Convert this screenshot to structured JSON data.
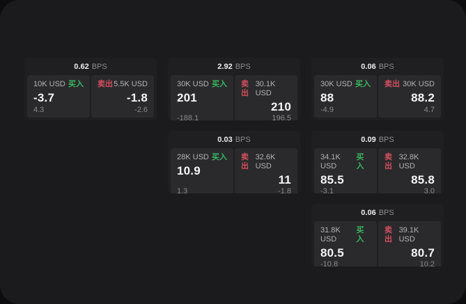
{
  "colors": {
    "page_bg": "#0d0d0e",
    "container_bg": "#1b1b1d",
    "card_bg": "#1f1f21",
    "cell_bg": "#2a2a2c",
    "buy_green": "#3cb460",
    "sell_red": "#d24f5f"
  },
  "labels": {
    "bps": "BPS",
    "buy": "买入",
    "sell": "卖出"
  },
  "cards": [
    {
      "bps": "0.62",
      "buy": {
        "amount": "10K USD",
        "price": "-3.7",
        "delta": "4.3"
      },
      "sell": {
        "amount": "5.5K USD",
        "price": "-1.8",
        "delta": "-2.6"
      }
    },
    {
      "bps": "2.92",
      "buy": {
        "amount": "30K USD",
        "price": "201",
        "delta": "-188.1"
      },
      "sell": {
        "amount": "30.1K USD",
        "price": "210",
        "delta": "196.5"
      }
    },
    {
      "bps": "0.06",
      "buy": {
        "amount": "30K USD",
        "price": "88",
        "delta": "-4.9"
      },
      "sell": {
        "amount": "30K USD",
        "price": "88.2",
        "delta": "4.7"
      }
    },
    {
      "bps": "0.03",
      "buy": {
        "amount": "28K USD",
        "price": "10.9",
        "delta": "1.3"
      },
      "sell": {
        "amount": "32.6K USD",
        "price": "11",
        "delta": "-1.8"
      }
    },
    {
      "bps": "0.09",
      "buy": {
        "amount": "34.1K USD",
        "price": "85.5",
        "delta": "-3.1"
      },
      "sell": {
        "amount": "32.8K USD",
        "price": "85.8",
        "delta": "3.0"
      }
    },
    {
      "bps": "0.06",
      "buy": {
        "amount": "31.8K USD",
        "price": "80.5",
        "delta": "-10.8"
      },
      "sell": {
        "amount": "39.1K USD",
        "price": "80.7",
        "delta": "10.2"
      }
    }
  ]
}
